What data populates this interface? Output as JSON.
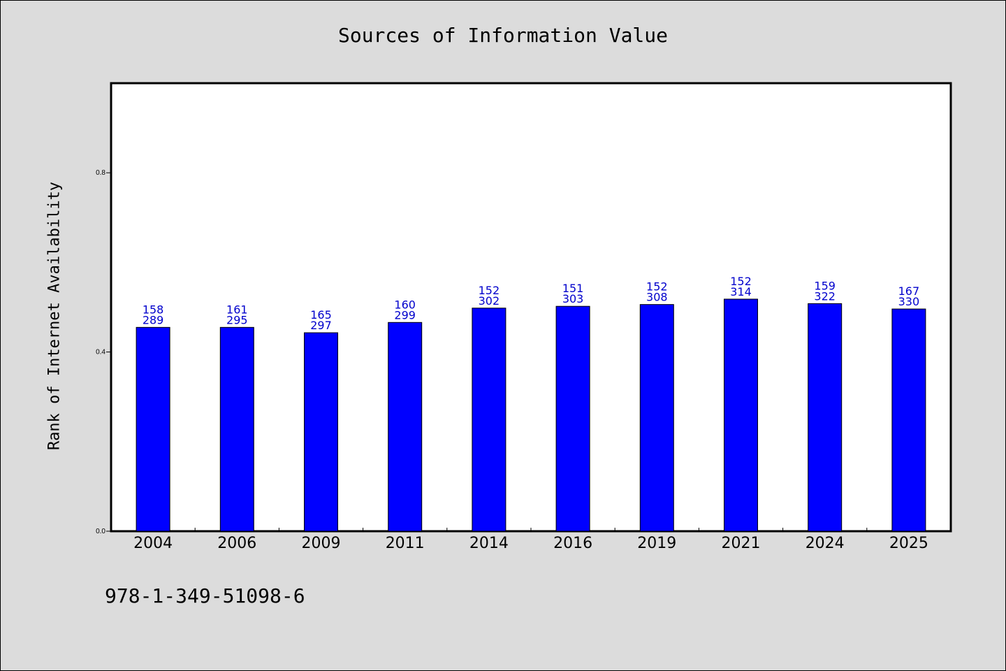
{
  "chart_data": {
    "type": "bar",
    "title": "Sources of Information Value",
    "xlabel": "",
    "ylabel": "Rank of Internet Availability",
    "categories": [
      "2004",
      "2006",
      "2009",
      "2011",
      "2014",
      "2016",
      "2019",
      "2021",
      "2024",
      "2025"
    ],
    "values": [
      0.455,
      0.455,
      0.443,
      0.466,
      0.498,
      0.502,
      0.506,
      0.518,
      0.508,
      0.496
    ],
    "label_top": [
      "158",
      "161",
      "165",
      "160",
      "152",
      "151",
      "152",
      "152",
      "159",
      "167"
    ],
    "label_bottom": [
      "289",
      "295",
      "297",
      "299",
      "302",
      "303",
      "308",
      "314",
      "322",
      "330"
    ],
    "ylim": [
      0,
      1.0
    ],
    "yticks": [
      0.0,
      0.4,
      0.8
    ],
    "ytick_labels": [
      "0.0",
      "0.4",
      "0.8"
    ],
    "bar_color": "#0000ff",
    "label_color": "#0000cc",
    "grid": false
  },
  "footnote": "978-1-349-51098-6"
}
